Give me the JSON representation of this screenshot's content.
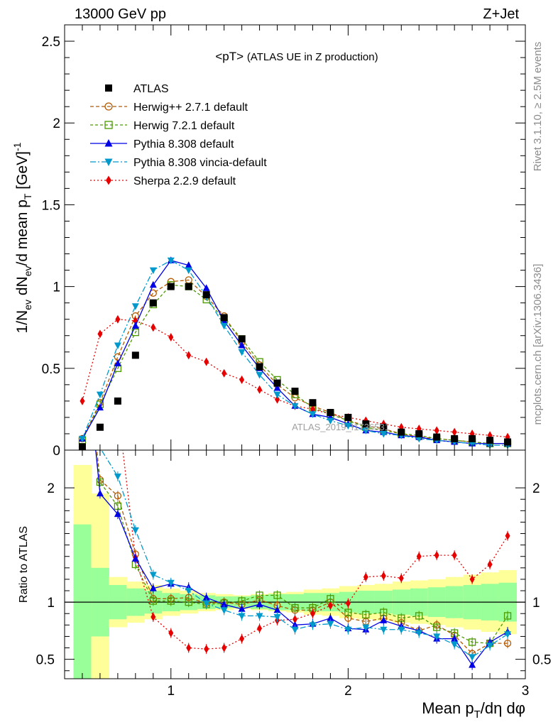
{
  "header": {
    "energy_label": "13000 GeV pp",
    "process_label": "Z+Jet",
    "plot_title_main": "<pT>",
    "plot_title_sub": "(ATLAS UE in Z production)",
    "watermark": "ATLAS_2019_I1736531",
    "rivet_label": "Rivet 3.1.10, ≥ 2.5M events",
    "mcplots_label": "mcplots.cern.ch [arXiv:1306.3436]"
  },
  "axes": {
    "x_label": "Mean p_T/dη dφ",
    "y_label_top": "1/N_ev dN_ev/d mean p_T [GeV]^-1",
    "y_label_ratio": "Ratio to ATLAS",
    "x_tick_labels": [
      "1",
      "2",
      "3"
    ],
    "y_tick_labels_top": [
      "0",
      "0.5",
      "1",
      "1.5",
      "2",
      "2.5"
    ],
    "y_tick_labels_ratio": [
      "0.5",
      "1",
      "2"
    ]
  },
  "chart_data": {
    "type": "line",
    "title": "<pT> (ATLAS UE in Z production)",
    "xlim": [
      0.4,
      3.0
    ],
    "ylim_main": [
      0,
      2.6
    ],
    "ylim_ratio": [
      0.33,
      2.33
    ],
    "x": [
      0.5,
      0.6,
      0.7,
      0.8,
      0.9,
      1.0,
      1.1,
      1.2,
      1.3,
      1.4,
      1.5,
      1.6,
      1.7,
      1.8,
      1.9,
      2.0,
      2.1,
      2.2,
      2.3,
      2.4,
      2.5,
      2.6,
      2.7,
      2.8,
      2.9
    ],
    "series": [
      {
        "name": "ATLAS",
        "color": "#000000",
        "marker": "square-filled",
        "dash": "none",
        "values": [
          0.02,
          0.14,
          0.3,
          0.58,
          0.9,
          1.0,
          1.0,
          0.95,
          0.81,
          0.68,
          0.51,
          0.41,
          0.36,
          0.29,
          0.23,
          0.2,
          0.16,
          0.14,
          0.11,
          0.1,
          0.08,
          0.07,
          0.07,
          0.06,
          0.05
        ],
        "ratio": [
          1,
          1,
          1,
          1,
          1,
          1,
          1,
          1,
          1,
          1,
          1,
          1,
          1,
          1,
          1,
          1,
          1,
          1,
          1,
          1,
          1,
          1,
          1,
          1,
          1
        ]
      },
      {
        "name": "Herwig++ 2.7.1 default",
        "color": "#b35900",
        "marker": "circle-open",
        "dash": "5,3",
        "values": [
          0.07,
          0.29,
          0.57,
          0.82,
          0.96,
          1.03,
          1.04,
          0.94,
          0.82,
          0.66,
          0.52,
          0.4,
          0.32,
          0.27,
          0.23,
          0.18,
          0.15,
          0.13,
          0.1,
          0.08,
          0.07,
          0.06,
          0.05,
          0.04,
          0.04
        ],
        "ratio": [
          3.5,
          2.07,
          1.93,
          1.42,
          1.03,
          1.03,
          1.04,
          0.99,
          1.0,
          0.98,
          1.02,
          0.97,
          0.93,
          0.93,
          1.0,
          0.86,
          0.83,
          0.86,
          0.82,
          0.75,
          0.8,
          0.71,
          0.55,
          0.64,
          0.64
        ]
      },
      {
        "name": "Herwig 7.2.1 default",
        "color": "#4c9900",
        "marker": "square-open",
        "dash": "4,3",
        "values": [
          0.06,
          0.28,
          0.5,
          0.72,
          0.89,
          1.01,
          1.0,
          0.92,
          0.8,
          0.68,
          0.54,
          0.43,
          0.34,
          0.26,
          0.22,
          0.18,
          0.14,
          0.12,
          0.1,
          0.09,
          0.07,
          0.06,
          0.05,
          0.04,
          0.04
        ],
        "ratio": [
          3.2,
          2.05,
          1.84,
          1.33,
          1.01,
          1.01,
          1.0,
          0.98,
          0.99,
          1.01,
          1.06,
          1.06,
          0.95,
          0.95,
          1.03,
          0.91,
          0.89,
          0.91,
          0.86,
          0.88,
          0.78,
          0.73,
          0.65,
          0.64,
          0.88
        ]
      },
      {
        "name": "Pythia 8.308 default",
        "color": "#0000e6",
        "marker": "triangle-up",
        "dash": "none",
        "values": [
          0.07,
          0.26,
          0.53,
          0.76,
          1.01,
          1.16,
          1.13,
          0.99,
          0.79,
          0.64,
          0.5,
          0.38,
          0.27,
          0.22,
          0.2,
          0.16,
          0.12,
          0.11,
          0.09,
          0.08,
          0.06,
          0.05,
          0.04,
          0.04,
          0.04
        ],
        "ratio": [
          3.5,
          1.95,
          1.77,
          1.38,
          1.12,
          1.16,
          1.13,
          1.04,
          0.98,
          0.94,
          0.98,
          0.93,
          0.8,
          0.81,
          0.86,
          0.77,
          0.76,
          0.84,
          0.79,
          0.75,
          0.68,
          0.68,
          0.45,
          0.65,
          0.74
        ]
      },
      {
        "name": "Pythia 8.308 vincia-default",
        "color": "#0099cc",
        "marker": "triangle-down",
        "dash": "8,3,2,3",
        "values": [
          0.07,
          0.34,
          0.64,
          0.88,
          1.1,
          1.16,
          1.1,
          0.94,
          0.76,
          0.6,
          0.46,
          0.34,
          0.27,
          0.22,
          0.18,
          0.15,
          0.12,
          0.1,
          0.09,
          0.07,
          0.06,
          0.05,
          0.04,
          0.03,
          0.03
        ],
        "ratio": [
          3.5,
          2.35,
          2.1,
          1.63,
          1.24,
          1.17,
          1.1,
          0.99,
          0.93,
          0.88,
          0.88,
          0.87,
          0.76,
          0.8,
          0.81,
          0.76,
          0.78,
          0.76,
          0.76,
          0.73,
          0.7,
          0.63,
          0.52,
          0.62,
          0.72
        ]
      },
      {
        "name": "Sherpa 2.2.9 default",
        "color": "#e60000",
        "marker": "diamond",
        "dash": "2,3",
        "values": [
          0.3,
          0.71,
          0.8,
          0.79,
          0.75,
          0.69,
          0.58,
          0.54,
          0.47,
          0.43,
          0.37,
          0.31,
          0.27,
          0.25,
          0.22,
          0.2,
          0.18,
          0.16,
          0.14,
          0.13,
          0.12,
          0.11,
          0.1,
          0.09,
          0.08
        ],
        "ratio": [
          15.0,
          5.0,
          2.7,
          1.39,
          0.87,
          0.73,
          0.6,
          0.59,
          0.6,
          0.68,
          0.77,
          0.84,
          0.85,
          0.9,
          0.97,
          0.99,
          1.22,
          1.23,
          1.21,
          1.4,
          1.41,
          1.41,
          1.2,
          1.33,
          1.58
        ]
      }
    ],
    "ratio_bands": {
      "x_edges": [
        0.45,
        0.55,
        0.65,
        0.75,
        0.85,
        0.95,
        1.05,
        1.15,
        1.25,
        1.35,
        1.45,
        1.55,
        1.65,
        1.75,
        1.85,
        1.95,
        2.05,
        2.15,
        2.25,
        2.35,
        2.45,
        2.55,
        2.65,
        2.75,
        2.85,
        2.95
      ],
      "green_half_width": [
        0.68,
        0.3,
        0.15,
        0.12,
        0.1,
        0.08,
        0.07,
        0.06,
        0.05,
        0.05,
        0.06,
        0.07,
        0.07,
        0.08,
        0.08,
        0.09,
        0.1,
        0.1,
        0.11,
        0.12,
        0.13,
        0.14,
        0.15,
        0.16,
        0.17
      ],
      "yellow_half_width": [
        1.2,
        0.95,
        0.22,
        0.18,
        0.15,
        0.12,
        0.1,
        0.08,
        0.07,
        0.06,
        0.07,
        0.08,
        0.09,
        0.11,
        0.12,
        0.14,
        0.15,
        0.16,
        0.18,
        0.19,
        0.2,
        0.22,
        0.24,
        0.26,
        0.28
      ]
    }
  }
}
